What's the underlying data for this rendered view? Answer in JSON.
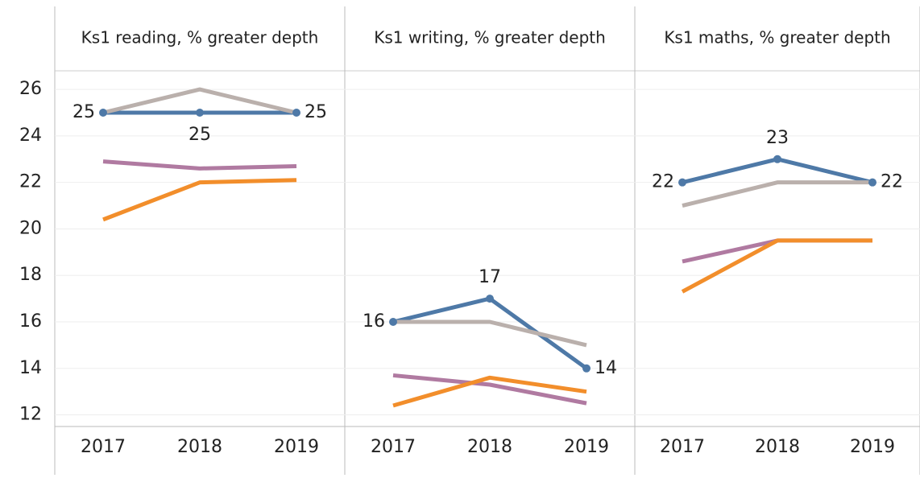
{
  "chart_data": [
    {
      "type": "line",
      "title": "Ks1 reading, % greater depth",
      "categories": [
        "2017",
        "2018",
        "2019"
      ],
      "ylim": [
        11.5,
        26.8
      ],
      "yticks": [
        12,
        14,
        16,
        18,
        20,
        22,
        24,
        26
      ],
      "grid": true,
      "series": [
        {
          "color": "#4e79a7",
          "values": [
            25,
            25,
            25
          ],
          "data_labels": true
        },
        {
          "color": "#bab0ac",
          "values": [
            25,
            26,
            25
          ]
        },
        {
          "color": "#b07aa1",
          "values": [
            22.9,
            22.6,
            22.7
          ]
        },
        {
          "color": "#f28e2b",
          "values": [
            20.4,
            22,
            22.1
          ]
        }
      ]
    },
    {
      "type": "line",
      "title": "Ks1 writing, % greater depth",
      "categories": [
        "2017",
        "2018",
        "2019"
      ],
      "ylim": [
        11.5,
        26.8
      ],
      "yticks": [
        12,
        14,
        16,
        18,
        20,
        22,
        24,
        26
      ],
      "grid": true,
      "series": [
        {
          "color": "#4e79a7",
          "values": [
            16,
            17,
            14
          ],
          "data_labels": true
        },
        {
          "color": "#bab0ac",
          "values": [
            16,
            16,
            15
          ]
        },
        {
          "color": "#b07aa1",
          "values": [
            13.7,
            13.3,
            12.5
          ]
        },
        {
          "color": "#f28e2b",
          "values": [
            12.4,
            13.6,
            13
          ]
        }
      ]
    },
    {
      "type": "line",
      "title": "Ks1 maths, % greater depth",
      "categories": [
        "2017",
        "2018",
        "2019"
      ],
      "ylim": [
        11.5,
        26.8
      ],
      "yticks": [
        12,
        14,
        16,
        18,
        20,
        22,
        24,
        26
      ],
      "grid": true,
      "series": [
        {
          "color": "#4e79a7",
          "values": [
            22,
            23,
            22
          ],
          "data_labels": true
        },
        {
          "color": "#bab0ac",
          "values": [
            21,
            22,
            22
          ]
        },
        {
          "color": "#b07aa1",
          "values": [
            18.6,
            19.5,
            19.5
          ]
        },
        {
          "color": "#f28e2b",
          "values": [
            17.3,
            19.5,
            19.5
          ]
        }
      ]
    }
  ]
}
